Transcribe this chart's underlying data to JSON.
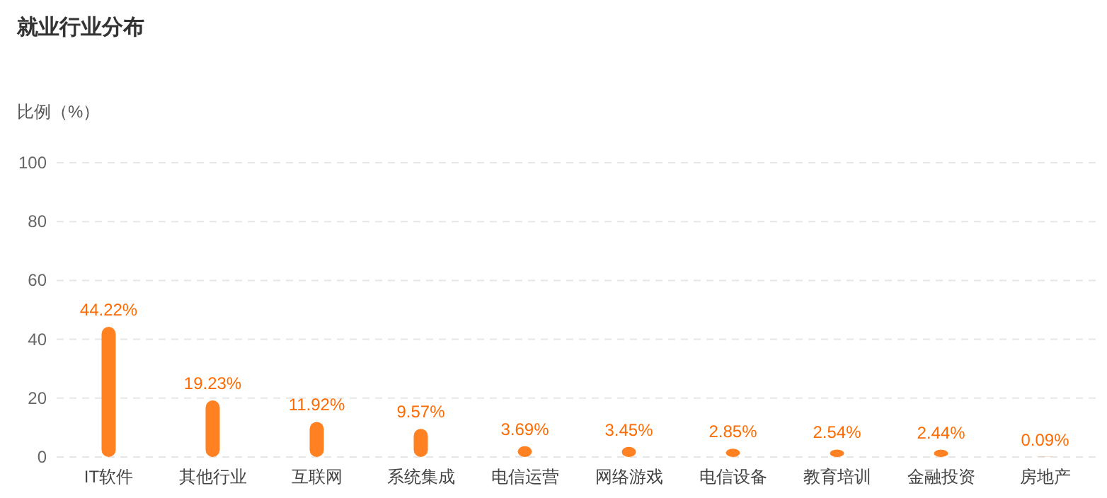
{
  "chart_data": {
    "type": "bar",
    "title": "就业行业分布",
    "ylabel": "比例（%）",
    "categories": [
      "IT软件",
      "其他行业",
      "互联网",
      "系统集成",
      "电信运营",
      "网络游戏",
      "电信设备",
      "教育培训",
      "金融投资",
      "房地产"
    ],
    "values": [
      44.22,
      19.23,
      11.92,
      9.57,
      3.69,
      3.45,
      2.85,
      2.54,
      2.44,
      0.09
    ],
    "value_labels": [
      "44.22%",
      "19.23%",
      "11.92%",
      "9.57%",
      "3.69%",
      "3.45%",
      "2.85%",
      "2.54%",
      "2.44%",
      "0.09%"
    ],
    "color": "#ff8122",
    "ylim": [
      0,
      100
    ],
    "yticks": [
      0,
      20,
      40,
      60,
      80,
      100
    ],
    "grid": "y"
  }
}
